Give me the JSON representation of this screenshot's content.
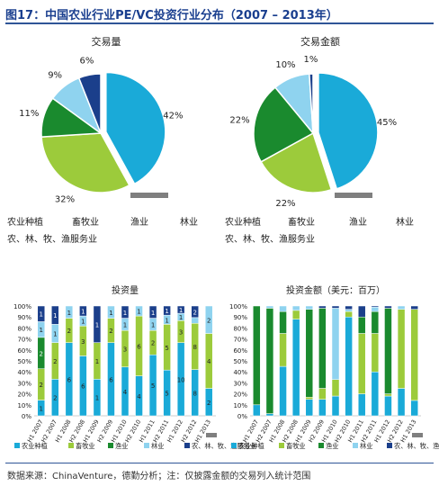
{
  "figure_title": "图17：中国农业行业PE/VC投资行业分布（2007 – 2013年）",
  "source_note": "数据来源：ChinaVenture，德勤分析；注：仅披露金额的交易列入统计范围",
  "colors": {
    "农业种植": "#1aaad8",
    "畜牧业": "#9ccb3b",
    "渔业": "#1a8a2e",
    "林业": "#8fd3ef",
    "农林牧渔服务业": "#1b3f8b"
  },
  "pie_legend": {
    "row1": [
      "农业种植",
      "畜牧业",
      "渔业",
      "林业"
    ],
    "row2": [
      "农、林、牧、渔服务业"
    ]
  },
  "bar_legend": [
    "农业种植",
    "畜牧业",
    "渔业",
    "林业",
    "农、林、牧、渔服务业"
  ],
  "chart_data": [
    {
      "type": "pie",
      "title": "交易量",
      "labels": [
        "农业种植",
        "畜牧业",
        "渔业",
        "林业",
        "农、林、牧、渔服务业"
      ],
      "values": [
        42,
        32,
        11,
        9,
        6
      ],
      "value_labels": [
        "42%",
        "32%",
        "11%",
        "9%",
        "6%"
      ]
    },
    {
      "type": "pie",
      "title": "交易金额",
      "labels": [
        "农业种植",
        "畜牧业",
        "渔业",
        "林业",
        "农、林、牧、渔服务业"
      ],
      "values": [
        45,
        22,
        22,
        10,
        1
      ],
      "value_labels": [
        "45%",
        "22%",
        "22%",
        "10%",
        "1%"
      ]
    },
    {
      "type": "bar",
      "stacked": "percent",
      "title": "投资量",
      "categories": [
        "H1 2007",
        "H2 2007",
        "H1 2008",
        "H2 2008",
        "H1 2009",
        "H2 2009",
        "H1 2010",
        "H2 2010",
        "H1 2011",
        "H2 2011",
        "H1 2012",
        "H2 2012",
        "H1 2013"
      ],
      "ylim": [
        0,
        100
      ],
      "yticks": [
        "0%",
        "10%",
        "20%",
        "30%",
        "40%",
        "50%",
        "60%",
        "70%",
        "80%",
        "90%",
        "100%"
      ],
      "series": [
        {
          "name": "农业种植",
          "values": [
            1,
            2,
            6,
            6,
            1,
            6,
            4,
            4,
            5,
            5,
            10,
            8,
            2
          ]
        },
        {
          "name": "畜牧业",
          "values": [
            2,
            2,
            2,
            3,
            1,
            2,
            3,
            6,
            2,
            5,
            3,
            8,
            4
          ]
        },
        {
          "name": "渔业",
          "values": [
            2,
            0,
            0,
            0,
            0,
            0,
            0,
            0,
            0,
            0,
            0,
            0,
            0
          ]
        },
        {
          "name": "林业",
          "values": [
            1,
            1,
            1,
            1,
            0,
            1,
            1,
            1,
            1,
            1,
            1,
            1,
            2
          ]
        },
        {
          "name": "农、林、牧、渔服务业",
          "values": [
            1,
            1,
            0,
            1,
            1,
            0,
            1,
            0,
            1,
            1,
            1,
            2,
            0
          ]
        }
      ],
      "segment_labels": [
        "1",
        "2",
        "6",
        "6",
        "1",
        "6",
        "4",
        "4",
        "5",
        "5",
        "10",
        "8",
        "2",
        "2",
        "2",
        "2",
        "3",
        "1",
        "2",
        "3",
        "6",
        "2",
        "5",
        "3",
        "8",
        "4",
        "2",
        "1",
        "1",
        "1",
        "1",
        "1",
        "1",
        "1",
        "1",
        "1",
        "1",
        "1",
        "2",
        "1",
        "1",
        "1",
        "1",
        "1",
        "1",
        "1",
        "1",
        "2"
      ]
    },
    {
      "type": "bar",
      "stacked": "percent",
      "title": "投资金额（美元：百万）",
      "categories": [
        "H1 2007",
        "H2 2007",
        "H1 2008",
        "H2 2008",
        "H1 2009",
        "H2 2009",
        "H1 2010",
        "H2 2010",
        "H1 2011",
        "H2 2011",
        "H1 2012",
        "H2 2012",
        "H1 2013"
      ],
      "ylim": [
        0,
        100
      ],
      "yticks": [
        "0%",
        "10%",
        "20%",
        "30%",
        "40%",
        "50%",
        "60%",
        "70%",
        "80%",
        "90%",
        "100%"
      ],
      "series": [
        {
          "name": "农业种植",
          "values": [
            10,
            2,
            45,
            88,
            15,
            15,
            18,
            90,
            20,
            40,
            18,
            25,
            14
          ]
        },
        {
          "name": "畜牧业",
          "values": [
            0,
            0,
            30,
            8,
            2,
            10,
            15,
            5,
            55,
            35,
            2,
            72,
            83
          ]
        },
        {
          "name": "渔业",
          "values": [
            90,
            96,
            20,
            0,
            80,
            73,
            0,
            0,
            15,
            20,
            78,
            0,
            0
          ]
        },
        {
          "name": "林业",
          "values": [
            0,
            2,
            5,
            4,
            3,
            0,
            65,
            2,
            0,
            4,
            0,
            3,
            0
          ]
        },
        {
          "name": "农、林、牧、渔服务业",
          "values": [
            0,
            0,
            0,
            0,
            0,
            2,
            2,
            3,
            10,
            1,
            2,
            0,
            3
          ]
        }
      ]
    }
  ]
}
